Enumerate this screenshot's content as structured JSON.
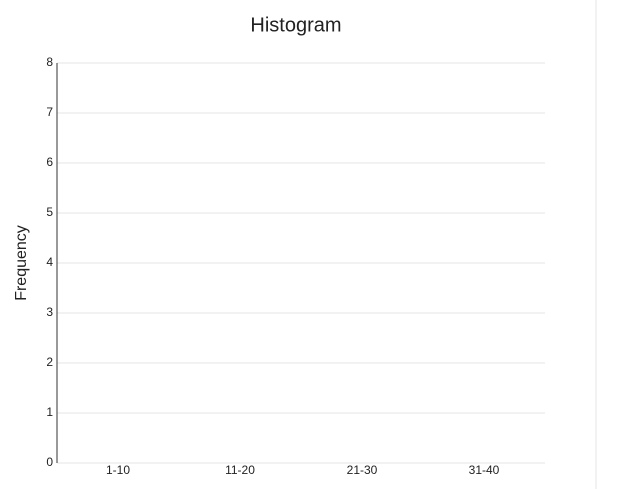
{
  "chart_data": {
    "type": "bar",
    "title": "Histogram",
    "y_label": "Frequency",
    "categories": [
      "1-10",
      "11-20",
      "21-30",
      "31-40"
    ],
    "values": [
      0,
      0,
      0,
      0
    ],
    "colors": [
      "#4a9fd8",
      "#b57fd6",
      "#3aa88f",
      "#e0686a"
    ],
    "ylim": [
      0,
      8
    ],
    "yticks": [
      0,
      1,
      2,
      3,
      4,
      5,
      6,
      7,
      8
    ],
    "grid": true
  }
}
